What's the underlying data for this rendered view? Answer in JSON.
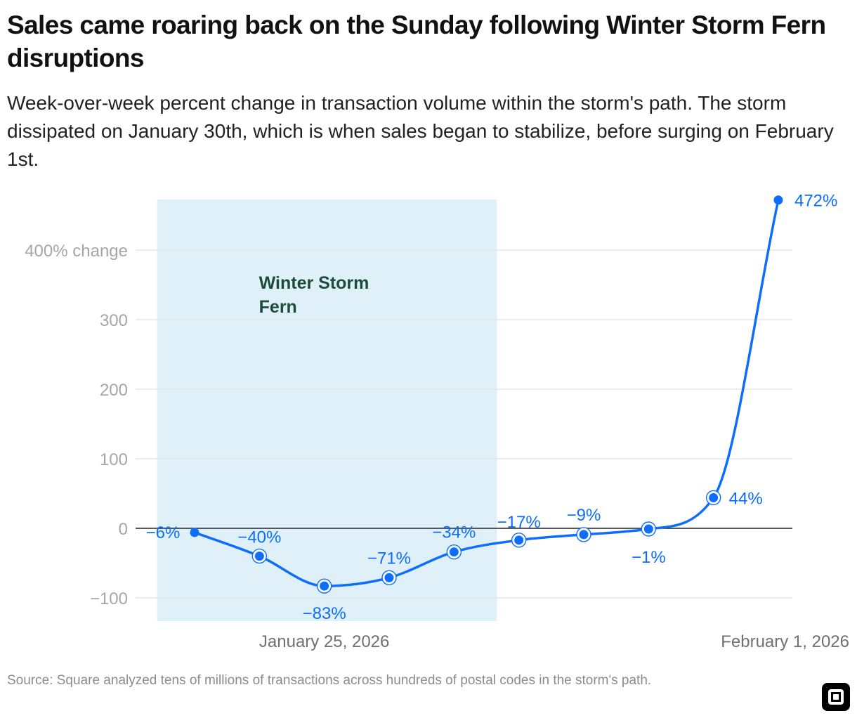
{
  "title": "Sales came roaring back on the Sunday following Winter Storm Fern disruptions",
  "subtitle": "Week-over-week percent change in transaction volume within the storm's path. The storm dissipated on January 30th, which is when sales began to stabilize, before surging on February 1st.",
  "source": "Source: Square analyzed tens of millions of transactions across hundreds of postal codes in the storm's path.",
  "brand_icon": "square-logo-icon",
  "colors": {
    "line": "#0d6efd",
    "band": "#dff0f8",
    "band_label": "#1c4d3a",
    "grid": "#e6e6e6",
    "zero_line": "#222222",
    "tick": "#a6a6a6"
  },
  "chart_data": {
    "type": "line",
    "title": "Sales came roaring back on the Sunday following Winter Storm Fern disruptions",
    "xlabel": "",
    "ylabel": "",
    "x": [
      "2026-01-23",
      "2026-01-24",
      "2026-01-25",
      "2026-01-26",
      "2026-01-27",
      "2026-01-28",
      "2026-01-29",
      "2026-01-30",
      "2026-01-31",
      "2026-02-01"
    ],
    "values": [
      -6,
      -40,
      -83,
      -71,
      -34,
      -17,
      -9,
      -1,
      44,
      472
    ],
    "labels": [
      "−6%",
      "−40%",
      "−83%",
      "−71%",
      "−34%",
      "−17%",
      "−9%",
      "−1%",
      "44%",
      "472%"
    ],
    "marker_ringed": [
      false,
      true,
      true,
      true,
      true,
      true,
      true,
      true,
      true,
      false
    ],
    "ylim": [
      -130,
      472
    ],
    "yticks": [
      {
        "value": 400,
        "label": "400% change"
      },
      {
        "value": 300,
        "label": "300"
      },
      {
        "value": 200,
        "label": "200"
      },
      {
        "value": 100,
        "label": "100"
      },
      {
        "value": 0,
        "label": "0"
      },
      {
        "value": -100,
        "label": "−100"
      }
    ],
    "xticks": [
      {
        "x": "2026-01-25",
        "label": "January 25, 2026"
      },
      {
        "x": "2026-02-01",
        "label": "February 1, 2026"
      }
    ],
    "shaded_region": {
      "start": "2026-01-22",
      "end": "2026-01-27",
      "label_lines": [
        "Winter Storm",
        "Fern"
      ]
    },
    "grid": true,
    "legend": "none"
  }
}
